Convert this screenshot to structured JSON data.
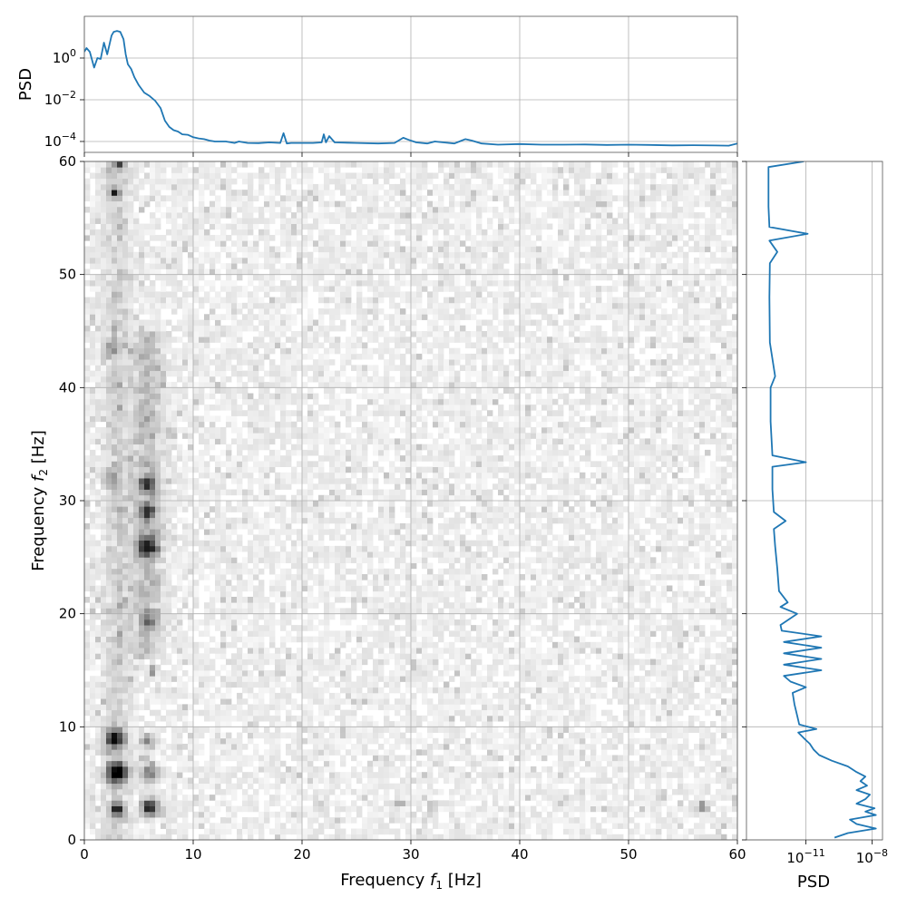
{
  "chart_data": [
    {
      "panel": "top",
      "type": "line",
      "ylabel": "PSD",
      "yscale": "log",
      "xlim": [
        0,
        60
      ],
      "ylim": [
        3e-05,
        100
      ],
      "grid": true,
      "color": "#1f77b4",
      "ytick_labels": [
        {
          "value": 1,
          "mantissa": "10",
          "exp": "0"
        },
        {
          "value": 0.01,
          "mantissa": "10",
          "exp": "−2"
        },
        {
          "value": 0.0001,
          "mantissa": "10",
          "exp": "−4"
        }
      ],
      "x": [
        0,
        0.2,
        0.5,
        0.9,
        1.2,
        1.5,
        1.8,
        2.1,
        2.5,
        2.7,
        3.0,
        3.3,
        3.6,
        3.8,
        4.0,
        4.3,
        4.6,
        5.0,
        5.5,
        6.0,
        6.5,
        7.0,
        7.4,
        7.8,
        8.2,
        8.6,
        9.0,
        9.5,
        10.0,
        10.5,
        11.0,
        11.5,
        12.0,
        13.0,
        13.8,
        14.2,
        15.0,
        16.0,
        17.0,
        18.0,
        18.3,
        18.6,
        19.0,
        20.0,
        21.0,
        21.8,
        22.0,
        22.2,
        22.5,
        23.0,
        25.0,
        27.0,
        28.5,
        29.3,
        29.8,
        30.5,
        31.5,
        32.2,
        33.0,
        34.0,
        35.0,
        35.6,
        36.5,
        38.0,
        40.0,
        42.0,
        44.0,
        46.0,
        48.0,
        50.0,
        52.0,
        54.0,
        56.0,
        58.0,
        59.2,
        60.0
      ],
      "values": [
        2.0,
        3.0,
        2.0,
        0.35,
        1.0,
        0.9,
        5.5,
        1.5,
        12,
        18,
        20,
        18,
        8,
        1.5,
        0.5,
        0.3,
        0.12,
        0.05,
        0.022,
        0.015,
        0.009,
        0.004,
        0.001,
        0.0005,
        0.00035,
        0.0003,
        0.00022,
        0.00021,
        0.00016,
        0.00014,
        0.00013,
        0.00011,
        0.0001,
        0.0001,
        8.5e-05,
        0.0001,
        8.5e-05,
        8.3e-05,
        9e-05,
        8.5e-05,
        0.00025,
        8e-05,
        8.5e-05,
        8.5e-05,
        8.5e-05,
        9e-05,
        0.00022,
        9e-05,
        0.00018,
        9e-05,
        8.5e-05,
        8e-05,
        8.5e-05,
        0.00015,
        0.00012,
        9e-05,
        8e-05,
        0.0001,
        9e-05,
        8e-05,
        0.00013,
        0.00011,
        8e-05,
        7e-05,
        7.5e-05,
        7e-05,
        7e-05,
        7.2e-05,
        6.8e-05,
        7e-05,
        6.8e-05,
        6.5e-05,
        6.6e-05,
        6.4e-05,
        6.3e-05,
        8e-05
      ]
    },
    {
      "panel": "main",
      "type": "heatmap",
      "xlabel_text": "Frequency ",
      "xlabel_var": "f",
      "xlabel_sub": "1",
      "xlabel_unit": " [Hz]",
      "ylabel_text": "Frequency ",
      "ylabel_var": "f",
      "ylabel_sub": "2",
      "ylabel_unit": " [Hz]",
      "xlim": [
        0,
        60
      ],
      "ylim": [
        0,
        60
      ],
      "xticks": [
        "0",
        "10",
        "20",
        "30",
        "40",
        "50",
        "60"
      ],
      "yticks": [
        "0",
        "10",
        "20",
        "30",
        "40",
        "50",
        "60"
      ],
      "colormap": "greys",
      "grid": true,
      "bands": [
        {
          "f1": 3.0,
          "f2_from": 0,
          "f2_to": 60,
          "intensity": 0.18,
          "width": 1.2
        },
        {
          "f1": 5.8,
          "f2_from": 16,
          "f2_to": 45,
          "intensity": 0.28,
          "width": 1.4
        }
      ],
      "hotspots": [
        {
          "f1": 3.0,
          "f2": 6.0,
          "intensity": 1.0,
          "radius": 0.9
        },
        {
          "f1": 2.8,
          "f2": 9.0,
          "intensity": 0.85,
          "radius": 0.8
        },
        {
          "f1": 3.0,
          "f2": 2.7,
          "intensity": 0.8,
          "radius": 0.6
        },
        {
          "f1": 6.0,
          "f2": 2.9,
          "intensity": 0.9,
          "radius": 0.7
        },
        {
          "f1": 6.0,
          "f2": 6.0,
          "intensity": 0.45,
          "radius": 0.8
        },
        {
          "f1": 5.8,
          "f2": 8.8,
          "intensity": 0.4,
          "radius": 0.6
        },
        {
          "f1": 5.8,
          "f2": 26.0,
          "intensity": 0.75,
          "radius": 0.9
        },
        {
          "f1": 5.8,
          "f2": 29.0,
          "intensity": 0.7,
          "radius": 0.6
        },
        {
          "f1": 5.8,
          "f2": 31.5,
          "intensity": 0.6,
          "radius": 0.7
        },
        {
          "f1": 5.8,
          "f2": 19.5,
          "intensity": 0.45,
          "radius": 0.6
        },
        {
          "f1": 6.3,
          "f2": 15.0,
          "intensity": 0.55,
          "radius": 0.35
        },
        {
          "f1": 2.8,
          "f2": 57.3,
          "intensity": 0.7,
          "radius": 0.4
        },
        {
          "f1": 3.2,
          "f2": 59.8,
          "intensity": 0.6,
          "radius": 0.45
        },
        {
          "f1": 2.5,
          "f2": 43.5,
          "intensity": 0.3,
          "radius": 0.6
        },
        {
          "f1": 2.5,
          "f2": 32.0,
          "intensity": 0.3,
          "radius": 0.6
        },
        {
          "f1": 29.0,
          "f2": 3.2,
          "intensity": 0.35,
          "radius": 0.35
        },
        {
          "f1": 32.0,
          "f2": 3.0,
          "intensity": 0.3,
          "radius": 0.35
        },
        {
          "f1": 56.8,
          "f2": 3.0,
          "intensity": 0.45,
          "radius": 0.45
        },
        {
          "f1": 21.5,
          "f2": 3.0,
          "intensity": 0.25,
          "radius": 0.35
        }
      ]
    },
    {
      "panel": "right",
      "type": "line",
      "orientation": "vertical",
      "xlabel": "PSD",
      "xscale": "log",
      "xlim": [
        2e-14,
        3e-08
      ],
      "ylim": [
        0,
        60
      ],
      "grid": true,
      "color": "#1f77b4",
      "xtick_labels": [
        {
          "value": 1e-11,
          "mantissa": "10",
          "exp": "−11"
        },
        {
          "value": 1e-08,
          "mantissa": "10",
          "exp": "−8"
        }
      ],
      "f2": [
        0.2,
        0.6,
        1.0,
        1.4,
        1.8,
        2.2,
        2.5,
        2.8,
        3.2,
        3.6,
        4.0,
        4.4,
        4.8,
        5.2,
        5.6,
        6.0,
        6.5,
        7.0,
        7.5,
        8.0,
        8.5,
        9.0,
        9.5,
        9.8,
        10.2,
        11.0,
        12.0,
        13.0,
        13.5,
        14.0,
        14.5,
        15.0,
        15.5,
        16.0,
        16.5,
        17.0,
        17.5,
        18.0,
        18.5,
        19.0,
        20.0,
        20.6,
        21.0,
        22.0,
        24.0,
        26.0,
        27.5,
        28.2,
        29.0,
        31.0,
        33.0,
        33.4,
        34.0,
        37.0,
        40.0,
        41.0,
        44.0,
        48.0,
        51.0,
        52.0,
        53.0,
        53.6,
        54.2,
        56.0,
        58.0,
        59.5,
        60.0
      ],
      "values": [
        2e-10,
        8e-10,
        1.5e-08,
        2e-09,
        1e-09,
        1.5e-08,
        5e-09,
        1.3e-08,
        2e-09,
        5e-09,
        8e-09,
        2e-09,
        6e-09,
        3e-09,
        5e-09,
        2e-09,
        8e-10,
        1.5e-10,
        4e-11,
        2.2e-11,
        1.5e-11,
        8e-12,
        4.5e-12,
        3e-11,
        5e-12,
        4e-12,
        3e-12,
        2.5e-12,
        1e-11,
        2e-12,
        1e-12,
        5e-11,
        1e-12,
        5e-11,
        1e-12,
        5e-11,
        1e-12,
        5e-11,
        8e-13,
        7e-13,
        4e-12,
        7e-13,
        1.5e-12,
        6e-13,
        5e-13,
        4e-13,
        3.5e-13,
        1.2e-12,
        3.5e-13,
        3e-13,
        3e-13,
        1e-11,
        3e-13,
        2.5e-13,
        2.5e-13,
        4e-13,
        2.3e-13,
        2.2e-13,
        2.3e-13,
        5e-13,
        2.2e-13,
        1.2e-11,
        2.2e-13,
        2e-13,
        2e-13,
        2e-13,
        8e-12
      ]
    }
  ]
}
